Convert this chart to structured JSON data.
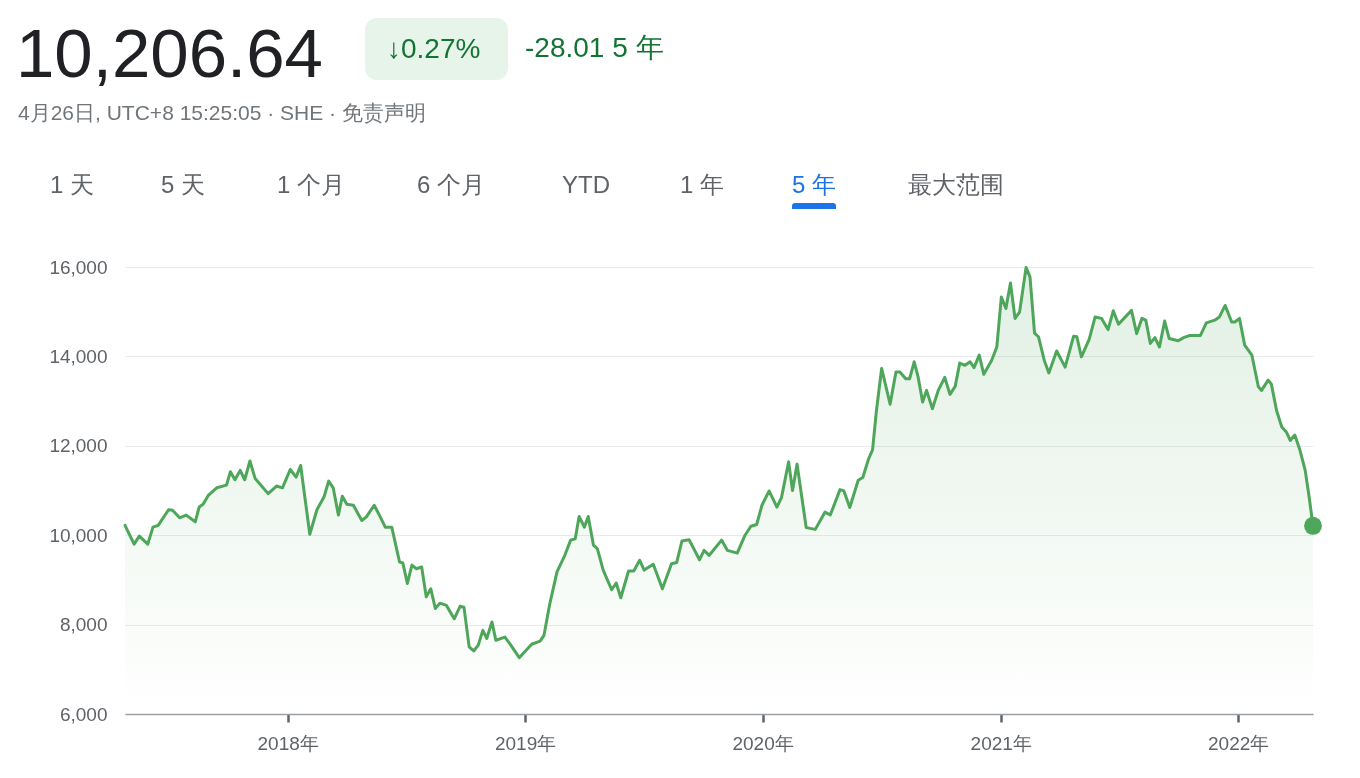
{
  "chart_data": {
    "type": "area",
    "title": "10,206.64",
    "subtitle": "4月26日, UTC+8 15:25:05 · SHE · 免责声明",
    "annotations": [
      "↓0.27%",
      "-28.01 5 年",
      "1 天",
      "5 天",
      "1 个月",
      "6 个月",
      "YTD",
      "1 年",
      "5 年",
      "最大范围"
    ],
    "x": [
      "2017-04-26",
      "2017-05-10",
      "2017-05-18",
      "2017-05-31",
      "2017-06-08",
      "2017-06-16",
      "2017-07-02",
      "2017-07-08",
      "2017-07-19",
      "2017-07-29",
      "2017-08-12",
      "2017-08-18",
      "2017-08-24",
      "2017-09-01",
      "2017-09-14",
      "2017-09-29",
      "2017-10-05",
      "2017-10-12",
      "2017-10-20",
      "2017-10-27",
      "2017-11-04",
      "2017-11-12",
      "2017-12-02",
      "2017-12-15",
      "2017-12-24",
      "2018-01-05",
      "2018-01-14",
      "2018-01-21",
      "2018-02-04",
      "2018-02-15",
      "2018-02-26",
      "2018-03-05",
      "2018-03-12",
      "2018-03-20",
      "2018-03-26",
      "2018-04-02",
      "2018-04-12",
      "2018-04-25",
      "2018-05-02",
      "2018-05-14",
      "2018-05-22",
      "2018-05-31",
      "2018-06-10",
      "2018-06-22",
      "2018-06-27",
      "2018-07-04",
      "2018-07-11",
      "2018-07-18",
      "2018-07-26",
      "2018-08-02",
      "2018-08-09",
      "2018-08-16",
      "2018-08-23",
      "2018-09-02",
      "2018-09-14",
      "2018-09-23",
      "2018-09-29",
      "2018-10-07",
      "2018-10-14",
      "2018-10-21",
      "2018-10-28",
      "2018-11-03",
      "2018-11-11",
      "2018-11-17",
      "2018-12-01",
      "2018-12-10",
      "2018-12-23",
      "2019-01-11",
      "2019-01-24",
      "2019-01-30",
      "2019-02-08",
      "2019-02-19",
      "2019-03-03",
      "2019-03-12",
      "2019-03-19",
      "2019-03-25",
      "2019-04-02",
      "2019-04-08",
      "2019-04-16",
      "2019-04-22",
      "2019-05-01",
      "2019-05-14",
      "2019-05-21",
      "2019-05-28",
      "2019-06-09",
      "2019-06-17",
      "2019-06-26",
      "2019-07-03",
      "2019-07-17",
      "2019-07-31",
      "2019-08-14",
      "2019-08-22",
      "2019-08-30",
      "2019-09-10",
      "2019-09-26",
      "2019-10-03",
      "2019-10-11",
      "2019-10-30",
      "2019-11-08",
      "2019-11-23",
      "2019-12-05",
      "2019-12-14",
      "2019-12-23",
      "2019-12-31",
      "2020-01-11",
      "2020-01-23",
      "2020-01-30",
      "2020-02-10",
      "2020-02-16",
      "2020-02-23",
      "2020-03-08",
      "2020-03-22",
      "2020-04-06",
      "2020-04-14",
      "2020-04-29",
      "2020-05-05",
      "2020-05-14",
      "2020-05-27",
      "2020-06-03",
      "2020-06-12",
      "2020-06-18",
      "2020-06-24",
      "2020-07-02",
      "2020-07-15",
      "2020-07-24",
      "2020-07-30",
      "2020-08-08",
      "2020-08-14",
      "2020-08-21",
      "2020-08-27",
      "2020-09-03",
      "2020-09-09",
      "2020-09-18",
      "2020-09-27",
      "2020-10-07",
      "2020-10-15",
      "2020-10-23",
      "2020-10-30",
      "2020-11-07",
      "2020-11-15",
      "2020-11-21",
      "2020-11-29",
      "2020-12-06",
      "2020-12-18",
      "2020-12-26",
      "2021-01-02",
      "2021-01-09",
      "2021-01-16",
      "2021-01-23",
      "2021-01-30",
      "2021-02-09",
      "2021-02-15",
      "2021-02-22",
      "2021-02-28",
      "2021-03-09",
      "2021-03-16",
      "2021-03-28",
      "2021-04-10",
      "2021-04-23",
      "2021-04-28",
      "2021-05-05",
      "2021-05-17",
      "2021-05-26",
      "2021-06-05",
      "2021-06-15",
      "2021-06-23",
      "2021-07-01",
      "2021-07-21",
      "2021-07-29",
      "2021-08-06",
      "2021-08-12",
      "2021-08-19",
      "2021-08-26",
      "2021-09-02",
      "2021-09-10",
      "2021-09-17",
      "2021-10-01",
      "2021-10-09",
      "2021-10-19",
      "2021-11-04",
      "2021-11-13",
      "2021-11-26",
      "2021-12-03",
      "2021-12-12",
      "2021-12-22",
      "2021-12-27",
      "2022-01-03",
      "2022-01-11",
      "2022-01-22",
      "2022-02-01",
      "2022-02-06",
      "2022-02-16",
      "2022-02-21",
      "2022-03-01",
      "2022-03-09",
      "2022-03-16",
      "2022-03-22",
      "2022-03-29",
      "2022-04-06",
      "2022-04-14",
      "2022-04-20",
      "2022-04-26"
    ],
    "series": [
      {
        "color": "#4ea65a",
        "values": [
          10220,
          9800,
          9980,
          9800,
          10180,
          10220,
          10570,
          10560,
          10390,
          10450,
          10300,
          10630,
          10690,
          10890,
          11060,
          11120,
          11420,
          11240,
          11450,
          11240,
          11660,
          11270,
          10930,
          11100,
          11060,
          11470,
          11300,
          11560,
          10020,
          10570,
          10860,
          11210,
          11060,
          10450,
          10870,
          10690,
          10670,
          10330,
          10410,
          10670,
          10450,
          10180,
          10180,
          9400,
          9380,
          8920,
          9330,
          9250,
          9290,
          8620,
          8800,
          8360,
          8480,
          8430,
          8130,
          8410,
          8390,
          7500,
          7410,
          7540,
          7870,
          7690,
          8060,
          7650,
          7720,
          7540,
          7260,
          7560,
          7630,
          7760,
          8470,
          9180,
          9550,
          9890,
          9920,
          10420,
          10180,
          10420,
          9780,
          9700,
          9220,
          8780,
          8930,
          8600,
          9200,
          9200,
          9440,
          9220,
          9350,
          8800,
          9360,
          9390,
          9870,
          9900,
          9450,
          9660,
          9550,
          9890,
          9660,
          9600,
          10000,
          10200,
          10240,
          10670,
          10990,
          10630,
          10840,
          11640,
          11000,
          11590,
          10170,
          10130,
          10520,
          10450,
          11020,
          10990,
          10620,
          11230,
          11290,
          11710,
          11910,
          12790,
          13730,
          12930,
          13650,
          13650,
          13500,
          13500,
          13880,
          13540,
          12980,
          13240,
          12830,
          13240,
          13530,
          13150,
          13330,
          13850,
          13800,
          13880,
          13750,
          14030,
          13600,
          13910,
          14210,
          15330,
          15070,
          15640,
          14850,
          14990,
          15990,
          15780,
          14520,
          14440,
          13910,
          13630,
          14120,
          13760,
          14450,
          14440,
          13990,
          14380,
          14880,
          14850,
          14600,
          15020,
          14720,
          15030,
          14510,
          14850,
          14810,
          14290,
          14420,
          14210,
          14790,
          14400,
          14350,
          14420,
          14470,
          14470,
          14750,
          14810,
          14880,
          15140,
          14770,
          14770,
          14850,
          14250,
          14030,
          13320,
          13240,
          13470,
          13380,
          12790,
          12420,
          12310,
          12120,
          12240,
          11900,
          11450,
          10860,
          10210
        ]
      },
      {
        "type": "scatter",
        "color": "#4ea65a",
        "x": [
          "2022-04-26"
        ],
        "values": [
          10210
        ]
      }
    ],
    "xlim": [
      "2017-04-26",
      "2022-04-26"
    ],
    "xticks": [
      {
        "value": "2018-01-01",
        "label": "2018年"
      },
      {
        "value": "2019-01-01",
        "label": "2019年"
      },
      {
        "value": "2020-01-01",
        "label": "2020年"
      },
      {
        "value": "2021-01-01",
        "label": "2021年"
      },
      {
        "value": "2022-01-01",
        "label": "2022年"
      }
    ],
    "ylim": [
      6000,
      16000
    ],
    "yticks": [
      {
        "value": 6000,
        "label": "6,000"
      },
      {
        "value": 8000,
        "label": "8,000"
      },
      {
        "value": 10000,
        "label": "10,000"
      },
      {
        "value": 12000,
        "label": "12,000"
      },
      {
        "value": 14000,
        "label": "14,000"
      },
      {
        "value": 16000,
        "label": "16,000"
      }
    ],
    "grid": "y"
  }
}
